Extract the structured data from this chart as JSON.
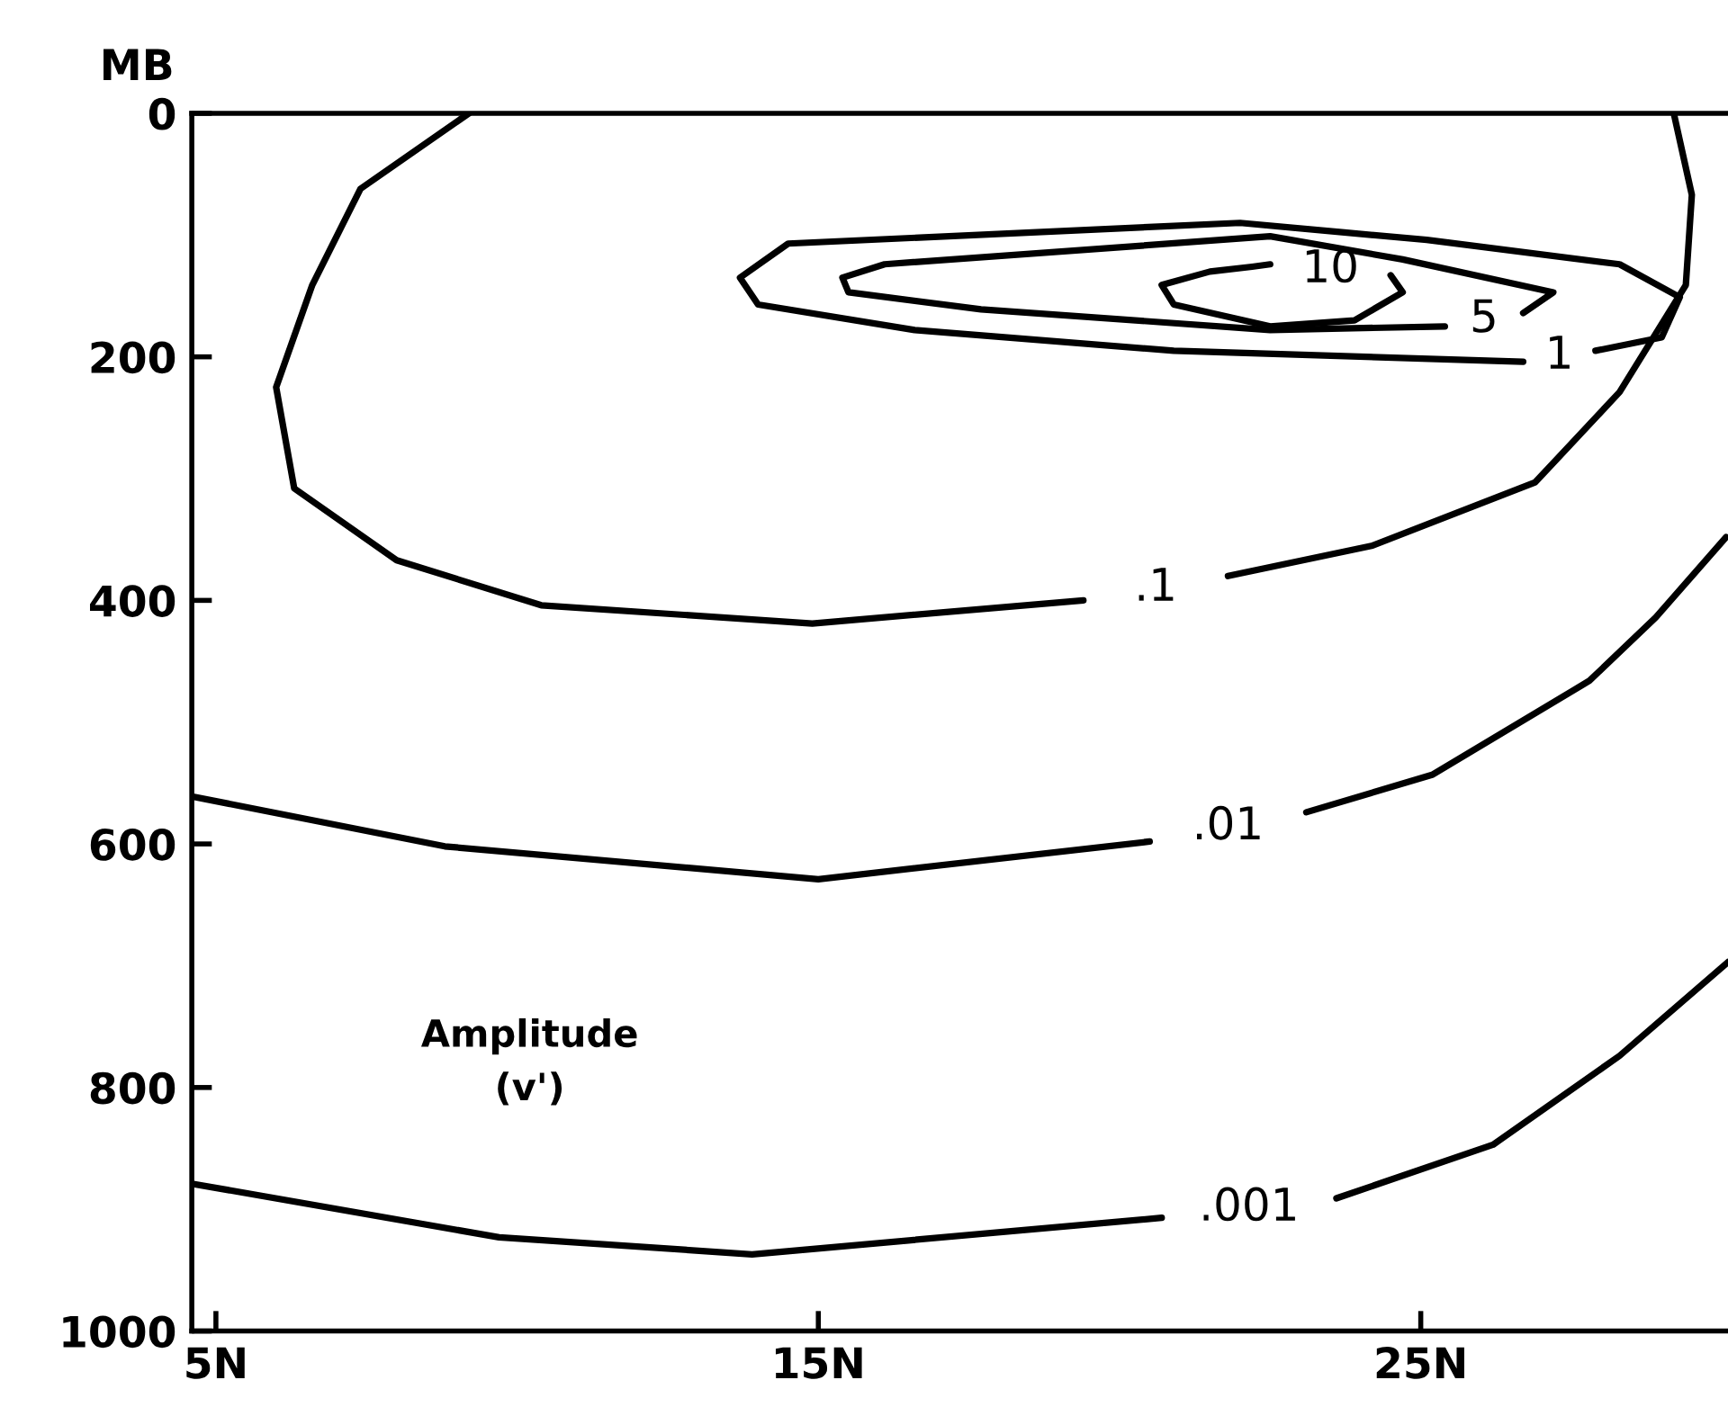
{
  "chart_data": {
    "type": "line",
    "ylabel": "MB",
    "xlim": [
      4.6,
      30.1
    ],
    "ylim": [
      1000,
      0
    ],
    "xticks": [
      {
        "value": 5,
        "label": "5N"
      },
      {
        "value": 15,
        "label": "15N"
      },
      {
        "value": 25,
        "label": "25N"
      }
    ],
    "yticks": [
      0,
      200,
      400,
      600,
      800,
      1000
    ],
    "grid": false,
    "legend": false,
    "marker": "none",
    "line_style": "solid",
    "series": [
      {
        "name": ".1",
        "color": "#000000",
        "x": [
          9.2,
          7.4,
          6.6,
          6.0,
          6.3,
          8.0,
          10.4,
          14.9,
          19.4,
          20.0,
          21.8,
          24.2,
          26.9,
          28.3,
          29.4,
          29.5,
          29.2
        ],
        "values": [
          0,
          62,
          141,
          225,
          308,
          367,
          404,
          419,
          400,
          null,
          380,
          355,
          303,
          229,
          141,
          67,
          0
        ]
      },
      {
        "name": ".01",
        "color": "#000000",
        "x": [
          4.6,
          8.8,
          15.0,
          20.5,
          21.5,
          23.1,
          25.2,
          27.8,
          28.9,
          30.07
        ],
        "values": [
          561,
          602,
          629,
          598,
          null,
          574,
          543,
          466,
          414,
          348
        ]
      },
      {
        "name": ".001",
        "color": "#000000",
        "x": [
          4.6,
          9.7,
          13.9,
          20.7,
          22.0,
          23.6,
          26.2,
          28.3,
          30.1
        ],
        "values": [
          879,
          923,
          937,
          907,
          null,
          891,
          847,
          774,
          697
        ]
      },
      {
        "name": "1",
        "color": "#000000",
        "x": [
          26.7,
          20.9,
          16.6,
          14.0,
          13.7,
          14.5,
          22.0,
          25.1,
          28.3,
          29.3,
          29.0,
          27.9
        ],
        "values": [
          204,
          195,
          178,
          157,
          135,
          107,
          90,
          104,
          124,
          151,
          184,
          195
        ]
      },
      {
        "name": "5",
        "color": "#000000",
        "x": [
          25.4,
          22.5,
          17.7,
          15.5,
          15.4,
          16.1,
          22.5,
          24.7,
          27.2,
          26.7
        ],
        "values": [
          175,
          178,
          161,
          147,
          135,
          124,
          101,
          120,
          147,
          164
        ]
      },
      {
        "name": "10",
        "color": "#000000",
        "x": [
          24.5,
          24.7,
          23.9,
          22.5,
          20.9,
          20.7,
          21.5,
          22.2,
          22.5
        ],
        "values": [
          133,
          147,
          170,
          175,
          157,
          141,
          130,
          126,
          124
        ]
      }
    ],
    "annotations": [
      "Amplitude\n(v')"
    ]
  }
}
